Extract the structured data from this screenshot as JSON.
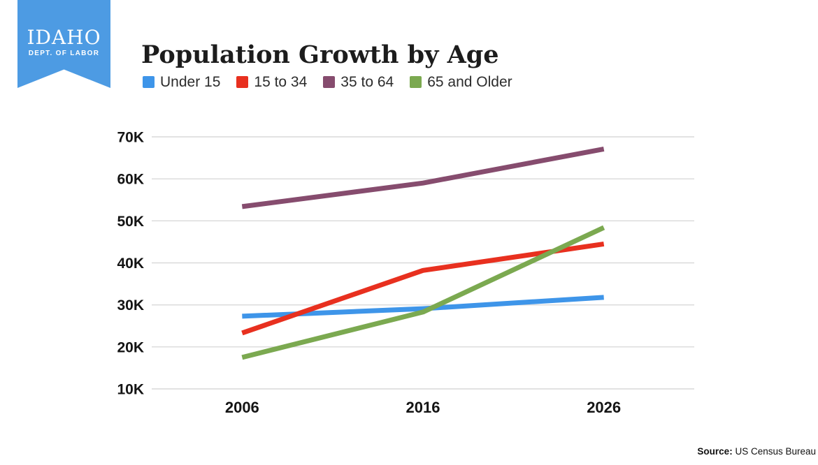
{
  "logo": {
    "org": "IDAHO",
    "dept": "DEPT. OF LABOR",
    "color": "#4D9BE3"
  },
  "title": "Population Growth by Age",
  "source": {
    "label": "Source:",
    "text": " US Census Bureau"
  },
  "chart_data": {
    "type": "line",
    "title": "Population Growth by Age",
    "categories": [
      "2006",
      "2016",
      "2026"
    ],
    "series": [
      {
        "name": "Under 15",
        "color": "#3E95E9",
        "values": [
          27300,
          29100,
          31800
        ]
      },
      {
        "name": "15 to 34",
        "color": "#E8301F",
        "values": [
          23300,
          38200,
          44500
        ]
      },
      {
        "name": "35 to 64",
        "color": "#864C6E",
        "values": [
          53400,
          59000,
          67100
        ]
      },
      {
        "name": "65 and Older",
        "color": "#7BA950",
        "values": [
          17500,
          28300,
          48400
        ]
      }
    ],
    "xlabel": "",
    "ylabel": "",
    "y_tick_labels": [
      "70K",
      "60K",
      "50K",
      "40K",
      "30K",
      "20K",
      "10K"
    ],
    "y_tick_values": [
      70000,
      60000,
      50000,
      40000,
      30000,
      20000,
      10000
    ],
    "ylim": [
      10000,
      70000
    ],
    "grid": "horizontal",
    "gridline_color": "#D9D9D9",
    "legend_position": "top-left"
  }
}
